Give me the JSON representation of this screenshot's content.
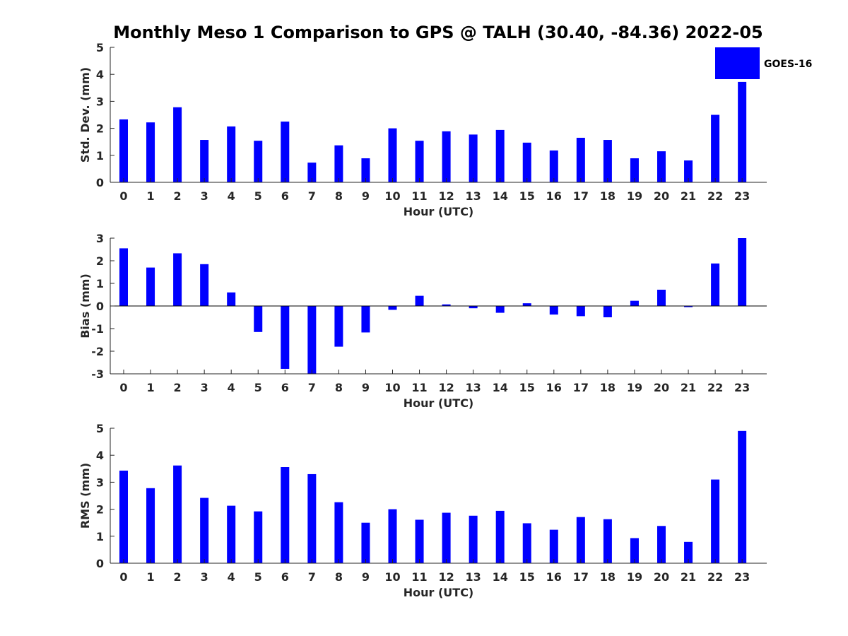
{
  "figure": {
    "title": "Monthly Meso 1 Comparison to GPS @ TALH (30.40, -84.36) 2022-05",
    "legend": {
      "label": "GOES-16",
      "color": "#0000ff",
      "placement": "top-right"
    }
  },
  "chart_data": [
    {
      "type": "bar",
      "xlabel": "Hour (UTC)",
      "ylabel": "Std. Dev. (mm)",
      "ylim": [
        0,
        5
      ],
      "yticks": [
        "0",
        "1",
        "2",
        "3",
        "4",
        "5"
      ],
      "categories": [
        "0",
        "1",
        "2",
        "3",
        "4",
        "5",
        "6",
        "7",
        "8",
        "9",
        "10",
        "11",
        "12",
        "13",
        "14",
        "15",
        "16",
        "17",
        "18",
        "19",
        "20",
        "21",
        "22",
        "23"
      ],
      "series": [
        {
          "name": "GOES-16",
          "color": "#0000ff",
          "values": [
            2.33,
            2.22,
            2.78,
            1.57,
            2.07,
            1.54,
            2.25,
            0.73,
            1.37,
            0.89,
            2.0,
            1.54,
            1.89,
            1.77,
            1.94,
            1.47,
            1.18,
            1.65,
            1.57,
            0.89,
            1.15,
            0.81,
            2.5,
            3.72
          ]
        }
      ]
    },
    {
      "type": "bar",
      "xlabel": "Hour (UTC)",
      "ylabel": "Bias (mm)",
      "ylim": [
        -3,
        3
      ],
      "yticks": [
        "-3",
        "-2",
        "-1",
        "0",
        "1",
        "2",
        "3"
      ],
      "categories": [
        "0",
        "1",
        "2",
        "3",
        "4",
        "5",
        "6",
        "7",
        "8",
        "9",
        "10",
        "11",
        "12",
        "13",
        "14",
        "15",
        "16",
        "17",
        "18",
        "19",
        "20",
        "21",
        "22",
        "23"
      ],
      "series": [
        {
          "name": "GOES-16",
          "color": "#0000ff",
          "values": [
            2.55,
            1.7,
            2.33,
            1.85,
            0.6,
            -1.15,
            -2.78,
            -3.0,
            -1.8,
            -1.17,
            -0.17,
            0.45,
            0.07,
            -0.1,
            -0.3,
            0.12,
            -0.38,
            -0.45,
            -0.5,
            0.23,
            0.72,
            -0.05,
            1.88,
            3.0
          ]
        }
      ]
    },
    {
      "type": "bar",
      "xlabel": "Hour (UTC)",
      "ylabel": "RMS (mm)",
      "ylim": [
        0,
        5
      ],
      "yticks": [
        "0",
        "1",
        "2",
        "3",
        "4",
        "5"
      ],
      "categories": [
        "0",
        "1",
        "2",
        "3",
        "4",
        "5",
        "6",
        "7",
        "8",
        "9",
        "10",
        "11",
        "12",
        "13",
        "14",
        "15",
        "16",
        "17",
        "18",
        "19",
        "20",
        "21",
        "22",
        "23"
      ],
      "series": [
        {
          "name": "GOES-16",
          "color": "#0000ff",
          "values": [
            3.43,
            2.78,
            3.62,
            2.42,
            2.13,
            1.92,
            3.56,
            3.3,
            2.26,
            1.5,
            2.0,
            1.61,
            1.87,
            1.76,
            1.94,
            1.48,
            1.24,
            1.71,
            1.63,
            0.93,
            1.38,
            0.79,
            3.1,
            4.9
          ]
        }
      ]
    }
  ]
}
